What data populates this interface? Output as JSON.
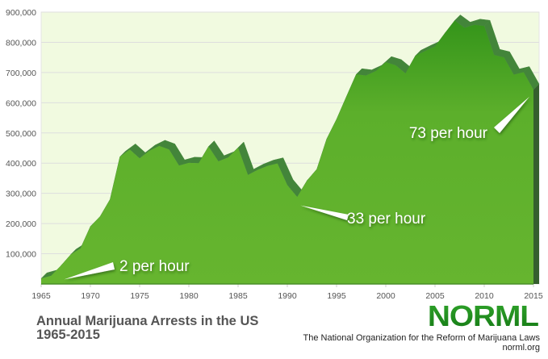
{
  "chart_data": {
    "type": "area",
    "title": "Annual Marijuana Arrests in the US",
    "subtitle": "1965-2015",
    "xlabel": "",
    "ylabel": "",
    "xlim": [
      1965,
      2015
    ],
    "ylim": [
      0,
      900000
    ],
    "grid": true,
    "yticks": [
      100000,
      200000,
      300000,
      400000,
      500000,
      600000,
      700000,
      800000,
      900000
    ],
    "ytick_labels": [
      "100,000",
      "200,000",
      "300,000",
      "400,000",
      "500,000",
      "600,000",
      "700,000",
      "800,000",
      "900,000"
    ],
    "xticks": [
      1965,
      1970,
      1975,
      1980,
      1985,
      1990,
      1995,
      2000,
      2005,
      2010,
      2015
    ],
    "xtick_labels": [
      "1965",
      "1970",
      "1975",
      "1980",
      "1985",
      "1990",
      "1995",
      "2000",
      "2005",
      "2010",
      "2015"
    ],
    "series": [
      {
        "name": "Marijuana arrests",
        "x": [
          1965,
          1966,
          1967,
          1968,
          1969,
          1970,
          1971,
          1972,
          1973,
          1974,
          1975,
          1976,
          1977,
          1978,
          1979,
          1980,
          1981,
          1982,
          1983,
          1984,
          1985,
          1986,
          1987,
          1988,
          1989,
          1990,
          1991,
          1992,
          1993,
          1994,
          1995,
          1996,
          1997,
          1998,
          1999,
          2000,
          2001,
          2002,
          2003,
          2004,
          2005,
          2006,
          2007,
          2008,
          2009,
          2010,
          2011,
          2012,
          2013,
          2014,
          2015
        ],
        "values": [
          18000,
          27000,
          60000,
          97000,
          118000,
          190000,
          224000,
          280000,
          421000,
          445000,
          416000,
          441000,
          457000,
          445000,
          392000,
          401000,
          400000,
          455000,
          406000,
          419000,
          451000,
          361000,
          378000,
          391000,
          399000,
          327000,
          288000,
          342000,
          380000,
          480000,
          545000,
          620000,
          694000,
          690000,
          705000,
          734000,
          724000,
          697000,
          755000,
          771000,
          786000,
          830000,
          872000,
          848000,
          858000,
          854000,
          758000,
          750000,
          693000,
          701000,
          643000
        ]
      }
    ],
    "annotations": [
      {
        "text": "2 per hour",
        "x": 1971,
        "y": 20000
      },
      {
        "text": "33 per hour",
        "x": 1991,
        "y": 280000
      },
      {
        "text": "73 per hour",
        "x": 2015,
        "y": 643000
      }
    ],
    "colors": {
      "fill": "#66b52f",
      "fill_top": "#3d9a1f",
      "extrusion": "#43853a",
      "plot_bg": "#f1fae0",
      "grid": "#dedede"
    }
  },
  "footer": {
    "title_line1": "Annual Marijuana Arrests in the US",
    "title_line2": "1965-2015",
    "logo": "NORML",
    "org_name": "The National Organization for the Reform of Marijuana Laws",
    "org_url": "norml.org"
  }
}
